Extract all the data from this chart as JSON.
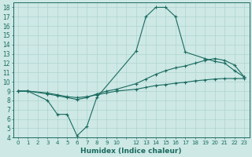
{
  "xlabel": "Humidex (Indice chaleur)",
  "background_color": "#cde8e5",
  "grid_color": "#afd4d0",
  "line_color": "#1a6b60",
  "ylim": [
    4,
    18.5
  ],
  "xlim": [
    -0.5,
    23.5
  ],
  "yticks": [
    4,
    5,
    6,
    7,
    8,
    9,
    10,
    11,
    12,
    13,
    14,
    15,
    16,
    17,
    18
  ],
  "xtick_positions": [
    0,
    1,
    2,
    3,
    4,
    5,
    6,
    7,
    8,
    9,
    10,
    11,
    12,
    13,
    14,
    15,
    16,
    17,
    18,
    19,
    20,
    21,
    22,
    23
  ],
  "xtick_labels": [
    "0",
    "1",
    "2",
    "3",
    "4",
    "5",
    "6",
    "7",
    "8",
    "9",
    "10",
    "",
    "12",
    "13",
    "14",
    "15",
    "16",
    "17",
    "18",
    "19",
    "20",
    "21",
    "22",
    "23"
  ],
  "line1_x": [
    0,
    1,
    3,
    4,
    5,
    6,
    7,
    8,
    12,
    13,
    14,
    15,
    16,
    17,
    19,
    20,
    21,
    22,
    23
  ],
  "line1_y": [
    9.0,
    9.0,
    8.0,
    6.5,
    6.5,
    4.2,
    5.2,
    8.3,
    13.3,
    17.0,
    18.0,
    18.0,
    17.0,
    13.2,
    12.5,
    12.2,
    12.0,
    11.2,
    10.5
  ],
  "line2_x": [
    0,
    1,
    3,
    4,
    5,
    6,
    7,
    8,
    9,
    10,
    12,
    13,
    14,
    15,
    16,
    17,
    18,
    19,
    20,
    21,
    22,
    23
  ],
  "line2_y": [
    9.0,
    9.0,
    8.7,
    8.5,
    8.3,
    8.1,
    8.3,
    8.7,
    9.0,
    9.2,
    9.8,
    10.3,
    10.8,
    11.2,
    11.5,
    11.7,
    12.0,
    12.3,
    12.5,
    12.3,
    11.8,
    10.5
  ],
  "line3_x": [
    0,
    1,
    3,
    4,
    5,
    6,
    7,
    8,
    9,
    10,
    12,
    13,
    14,
    15,
    16,
    17,
    18,
    19,
    20,
    21,
    22,
    23
  ],
  "line3_y": [
    9.0,
    9.0,
    8.8,
    8.6,
    8.4,
    8.3,
    8.4,
    8.6,
    8.8,
    9.0,
    9.2,
    9.4,
    9.6,
    9.7,
    9.85,
    9.95,
    10.1,
    10.2,
    10.3,
    10.35,
    10.35,
    10.35
  ]
}
